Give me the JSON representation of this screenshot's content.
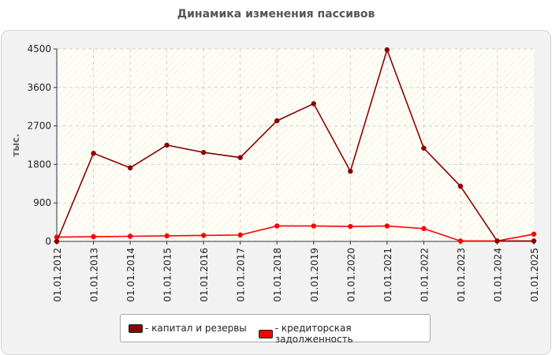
{
  "chart_data": {
    "type": "line",
    "title": "Динамика изменения пассивов",
    "ylabel": "тыс.",
    "xlabel": "",
    "categories": [
      "01.01.2012",
      "01.01.2013",
      "01.01.2014",
      "01.01.2015",
      "01.01.2016",
      "01.01.2017",
      "01.01.2018",
      "01.01.2019",
      "01.01.2020",
      "01.01.2021",
      "01.01.2022",
      "01.01.2023",
      "01.01.2024",
      "01.01.2025"
    ],
    "yticks": [
      "0",
      "900",
      "1800",
      "2700",
      "3600",
      "4500"
    ],
    "ylim": [
      0,
      4500
    ],
    "grid": true,
    "legend_position": "bottom",
    "series": [
      {
        "name": "- капитал и резервы",
        "color": "#8b0000",
        "values": [
          0,
          2060,
          1720,
          2250,
          2080,
          1960,
          2820,
          3220,
          1640,
          4480,
          2180,
          1290,
          10,
          10
        ]
      },
      {
        "name": "- кредиторская задолженность",
        "color": "#ff0000",
        "values": [
          100,
          110,
          120,
          130,
          140,
          150,
          360,
          360,
          350,
          360,
          300,
          10,
          10,
          170
        ]
      }
    ]
  }
}
